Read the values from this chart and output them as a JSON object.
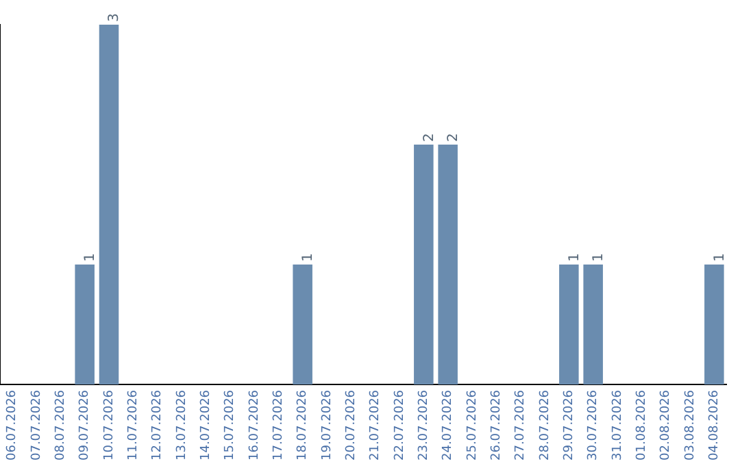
{
  "chart_data": {
    "type": "bar",
    "categories": [
      "06.07.2026",
      "07.07.2026",
      "08.07.2026",
      "09.07.2026",
      "10.07.2026",
      "11.07.2026",
      "12.07.2026",
      "13.07.2026",
      "14.07.2026",
      "15.07.2026",
      "16.07.2026",
      "17.07.2026",
      "18.07.2026",
      "19.07.2026",
      "20.07.2026",
      "21.07.2026",
      "22.07.2026",
      "23.07.2026",
      "24.07.2026",
      "25.07.2026",
      "26.07.2026",
      "27.07.2026",
      "28.07.2026",
      "29.07.2026",
      "30.07.2026",
      "31.07.2026",
      "01.08.2026",
      "02.08.2026",
      "03.08.2026",
      "04.08.2026"
    ],
    "values": [
      0,
      0,
      0,
      1,
      3,
      0,
      0,
      0,
      0,
      0,
      0,
      0,
      1,
      0,
      0,
      0,
      0,
      2,
      2,
      0,
      0,
      0,
      0,
      1,
      1,
      0,
      0,
      0,
      0,
      1
    ],
    "value_labels": [
      null,
      null,
      null,
      "1",
      "3",
      null,
      null,
      null,
      null,
      null,
      null,
      null,
      "1",
      null,
      null,
      null,
      null,
      "2",
      "2",
      null,
      null,
      null,
      null,
      "1",
      "1",
      null,
      null,
      null,
      null,
      "1"
    ],
    "color": "#6a8caf",
    "grid": false,
    "legend": false,
    "tick_labels": "x"
  }
}
